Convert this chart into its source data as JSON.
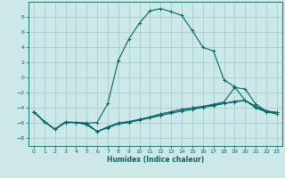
{
  "title": "",
  "xlabel": "Humidex (Indice chaleur)",
  "ylabel": "",
  "bg_color": "#cce8e8",
  "grid_color": "#aacccc",
  "line_color": "#006666",
  "xlim": [
    -0.5,
    23.5
  ],
  "ylim": [
    -9,
    10
  ],
  "yticks": [
    -8,
    -6,
    -4,
    -2,
    0,
    2,
    4,
    6,
    8
  ],
  "xticks": [
    0,
    1,
    2,
    3,
    4,
    5,
    6,
    7,
    8,
    9,
    10,
    11,
    12,
    13,
    14,
    15,
    16,
    17,
    18,
    19,
    20,
    21,
    22,
    23
  ],
  "curves": [
    {
      "x": [
        0,
        1,
        2,
        3,
        4,
        5,
        6,
        7,
        8,
        9,
        10,
        11,
        12,
        13,
        14,
        15,
        16,
        17,
        18,
        19,
        20,
        21,
        22,
        23
      ],
      "y": [
        -4.5,
        -5.8,
        -6.8,
        -5.8,
        -5.9,
        -6.0,
        -5.9,
        -3.4,
        2.3,
        5.1,
        7.2,
        8.8,
        9.1,
        8.7,
        8.2,
        6.2,
        4.0,
        3.5,
        -0.3,
        -1.2,
        -3.0,
        -4.0,
        -4.5,
        -4.8
      ]
    },
    {
      "x": [
        0,
        1,
        2,
        3,
        4,
        5,
        6,
        7,
        8,
        9,
        10,
        11,
        12,
        13,
        14,
        15,
        16,
        17,
        18,
        19,
        20,
        21,
        22,
        23
      ],
      "y": [
        -4.5,
        -5.8,
        -6.8,
        -5.9,
        -5.9,
        -6.0,
        -7.1,
        -6.5,
        -6.0,
        -5.8,
        -5.5,
        -5.2,
        -4.8,
        -4.5,
        -4.2,
        -4.0,
        -3.8,
        -3.6,
        -3.4,
        -3.2,
        -3.0,
        -3.8,
        -4.4,
        -4.6
      ]
    },
    {
      "x": [
        0,
        1,
        2,
        3,
        4,
        5,
        6,
        7,
        8,
        9,
        10,
        11,
        12,
        13,
        14,
        15,
        16,
        17,
        18,
        19,
        20,
        21,
        22,
        23
      ],
      "y": [
        -4.5,
        -5.8,
        -6.8,
        -5.9,
        -5.9,
        -6.1,
        -7.1,
        -6.6,
        -6.1,
        -5.9,
        -5.6,
        -5.3,
        -5.0,
        -4.7,
        -4.4,
        -4.2,
        -3.9,
        -3.7,
        -3.4,
        -3.1,
        -3.0,
        -3.8,
        -4.4,
        -4.6
      ]
    },
    {
      "x": [
        0,
        1,
        2,
        3,
        4,
        5,
        6,
        7,
        8,
        9,
        10,
        11,
        12,
        13,
        14,
        15,
        16,
        17,
        18,
        19,
        20,
        21,
        22,
        23
      ],
      "y": [
        -4.5,
        -5.8,
        -6.8,
        -5.9,
        -5.9,
        -6.2,
        -7.1,
        -6.5,
        -6.0,
        -5.8,
        -5.5,
        -5.2,
        -4.8,
        -4.5,
        -4.2,
        -4.0,
        -3.8,
        -3.5,
        -3.2,
        -1.3,
        -1.5,
        -3.5,
        -4.4,
        -4.6
      ]
    }
  ]
}
